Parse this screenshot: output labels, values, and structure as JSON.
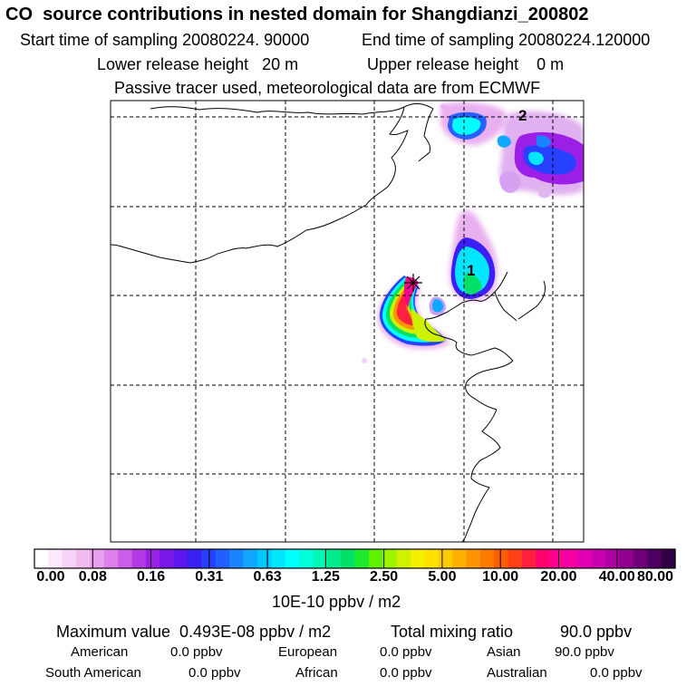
{
  "header": {
    "title": "CO  source contributions in nested domain for Shangdianzi_200802",
    "start_label": "Start time of sampling 20080224. 90000",
    "end_label": "End time of sampling 20080224.120000",
    "lower_label": "Lower release height   20 m",
    "upper_label": "Upper release height    0 m",
    "tracer_note": "Passive tracer used, meteorological data are from ECMWF"
  },
  "map": {
    "markers": [
      {
        "label": "1"
      },
      {
        "label": "2"
      }
    ],
    "receptor_symbol": "receptor-star"
  },
  "colorbar": {
    "tick_labels": [
      "0.00",
      "0.08",
      "0.16",
      "0.31",
      "0.63",
      "1.25",
      "2.50",
      "5.00",
      "10.00",
      "20.00",
      "40.00",
      "80.00"
    ],
    "unit": "10E-10 ppbv / m2",
    "colors": [
      "#ffffff",
      "#fbe8fb",
      "#f6d2f6",
      "#f0bcf0",
      "#e7a0ee",
      "#dd80ec",
      "#cc5cea",
      "#b43ae6",
      "#9b1fe6",
      "#7a18e8",
      "#5a17ee",
      "#3b1ff4",
      "#2840ff",
      "#2060ff",
      "#1a84ff",
      "#10a8ff",
      "#00c8ff",
      "#00e6ff",
      "#00ffff",
      "#00ffd8",
      "#00f7b4",
      "#00ec8c",
      "#00e066",
      "#20ea30",
      "#60f000",
      "#9cf400",
      "#cef200",
      "#f4f000",
      "#ffe000",
      "#ffcc00",
      "#ffb000",
      "#ff9400",
      "#ff7a00",
      "#ff5e00",
      "#ff4018",
      "#ff2040",
      "#ff0070",
      "#ff0090",
      "#f400a4",
      "#e000b0",
      "#c800b0",
      "#ae00a4",
      "#920090",
      "#70007a",
      "#4e0060",
      "#300040"
    ]
  },
  "summary": {
    "max_label": "Maximum value  0.493E-08 ppbv / m2",
    "total_label": "Total mixing ratio",
    "total_value": "90.0 ppbv",
    "regions": [
      {
        "name": "American",
        "value": "0.0 ppbv"
      },
      {
        "name": "European",
        "value": "0.0 ppbv"
      },
      {
        "name": "Asian",
        "value": "90.0 ppbv"
      },
      {
        "name": "South American",
        "value": "0.0 ppbv"
      },
      {
        "name": "African",
        "value": "0.0 ppbv"
      },
      {
        "name": "Australian",
        "value": "0.0 ppbv"
      }
    ]
  }
}
